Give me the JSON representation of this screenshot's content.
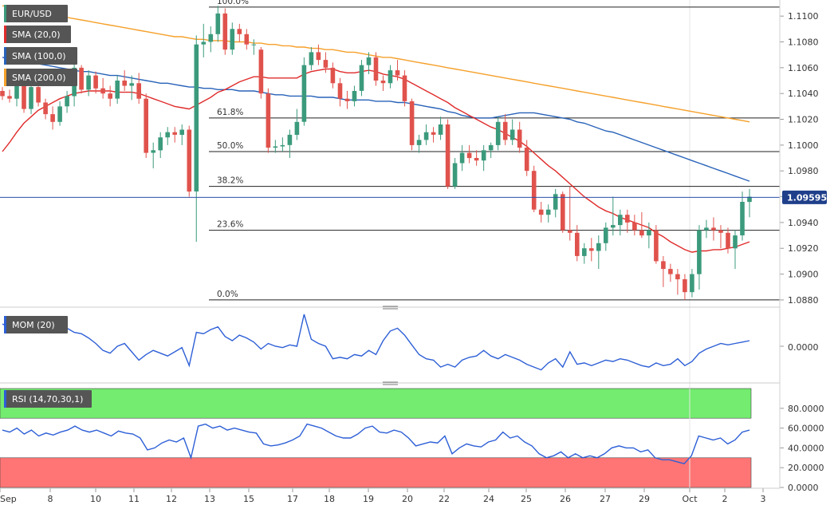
{
  "pair": "EUR/USD",
  "legend": {
    "sma20": {
      "label": "SMA (20,0)",
      "color": "#e02b2b"
    },
    "sma100": {
      "label": "SMA (100,0)",
      "color": "#2862b8"
    },
    "sma200": {
      "label": "SMA (200,0)",
      "color": "#f5a02a"
    }
  },
  "current_price": "1.09595",
  "colors": {
    "up": "#3b9a7c",
    "down": "#e0524c",
    "mom": "#2d5fd6",
    "rsi": "#2d5fd6",
    "overbought": "#73ec6f",
    "oversold": "#ff7575"
  },
  "momentum": {
    "label": "MOM (20)",
    "tick": "0.0000"
  },
  "rsi": {
    "label": "RSI (14,70,30,1)",
    "ticks": [
      "80.0000",
      "60.0000",
      "40.0000",
      "20.0000",
      "0.0000"
    ]
  },
  "chart_data": {
    "type": "candlestick",
    "ylim": [
      1.0875,
      1.111
    ],
    "y_ticks": [
      "1.1100",
      "1.1080",
      "1.1060",
      "1.1040",
      "1.1020",
      "1.1000",
      "1.0980",
      "1.0960",
      "1.0940",
      "1.0920",
      "1.0900",
      "1.0880"
    ],
    "x_labels": [
      "Sep",
      "8",
      "10",
      "11",
      "12",
      "13",
      "15",
      "17",
      "18",
      "19",
      "20",
      "22",
      "24",
      "25",
      "26",
      "27",
      "29",
      "Oct",
      "2",
      "3"
    ],
    "fibonacci": [
      {
        "label": "100.0%",
        "value": 1.1107
      },
      {
        "label": "61.8%",
        "value": 1.1021
      },
      {
        "label": "50.0%",
        "value": 1.0995
      },
      {
        "label": "38.2%",
        "value": 1.0968
      },
      {
        "label": "23.6%",
        "value": 1.0934
      },
      {
        "label": "0.0%",
        "value": 1.088
      }
    ],
    "candles": [
      [
        1.1042,
        1.1045,
        1.1035,
        1.1038
      ],
      [
        1.1038,
        1.1043,
        1.1033,
        1.1036
      ],
      [
        1.1036,
        1.1058,
        1.103,
        1.1052
      ],
      [
        1.1052,
        1.1055,
        1.1025,
        1.1028
      ],
      [
        1.1028,
        1.1048,
        1.1024,
        1.1045
      ],
      [
        1.1045,
        1.105,
        1.103,
        1.1033
      ],
      [
        1.1033,
        1.1036,
        1.102,
        1.1024
      ],
      [
        1.1024,
        1.103,
        1.1012,
        1.1018
      ],
      [
        1.1018,
        1.1034,
        1.1015,
        1.103
      ],
      [
        1.103,
        1.1042,
        1.1025,
        1.1038
      ],
      [
        1.1038,
        1.1066,
        1.103,
        1.106
      ],
      [
        1.106,
        1.1062,
        1.104,
        1.1043
      ],
      [
        1.1043,
        1.1058,
        1.1038,
        1.1054
      ],
      [
        1.1054,
        1.1057,
        1.104,
        1.1044
      ],
      [
        1.1044,
        1.1052,
        1.1036,
        1.104
      ],
      [
        1.104,
        1.1046,
        1.103,
        1.1036
      ],
      [
        1.1036,
        1.1054,
        1.1032,
        1.105
      ],
      [
        1.105,
        1.1058,
        1.1042,
        1.1046
      ],
      [
        1.1046,
        1.1054,
        1.1035,
        1.1048
      ],
      [
        1.1048,
        1.1056,
        1.1032,
        1.1036
      ],
      [
        1.1036,
        1.104,
        1.099,
        1.0994
      ],
      [
        1.0994,
        1.1002,
        1.0982,
        1.0996
      ],
      [
        1.0996,
        1.101,
        1.099,
        1.1006
      ],
      [
        1.1006,
        1.1014,
        1.1,
        1.101
      ],
      [
        1.101,
        1.1014,
        1.1002,
        1.1008
      ],
      [
        1.1008,
        1.1016,
        1.1,
        1.1012
      ],
      [
        1.1012,
        1.1015,
        1.096,
        1.0964
      ],
      [
        1.0964,
        1.1085,
        1.0925,
        1.1078
      ],
      [
        1.1078,
        1.1094,
        1.1068,
        1.108
      ],
      [
        1.108,
        1.1092,
        1.1072,
        1.1086
      ],
      [
        1.1086,
        1.1108,
        1.108,
        1.1102
      ],
      [
        1.1102,
        1.1106,
        1.107,
        1.1074
      ],
      [
        1.1074,
        1.1095,
        1.107,
        1.109
      ],
      [
        1.109,
        1.1094,
        1.108,
        1.1086
      ],
      [
        1.1086,
        1.109,
        1.1074,
        1.1078
      ],
      [
        1.1078,
        1.1082,
        1.107,
        1.1078
      ],
      [
        1.1074,
        1.1076,
        1.1036,
        1.104
      ],
      [
        1.104,
        1.1044,
        1.0994,
        1.0998
      ],
      [
        1.0998,
        1.1004,
        1.0994,
        1.0999
      ],
      [
        1.0999,
        1.1006,
        1.0995,
        1.1
      ],
      [
        1.1,
        1.1012,
        1.099,
        1.1008
      ],
      [
        1.1008,
        1.1028,
        1.1004,
        1.1018
      ],
      [
        1.1018,
        1.1068,
        1.1015,
        1.1062
      ],
      [
        1.1062,
        1.1076,
        1.1058,
        1.1072
      ],
      [
        1.1072,
        1.1078,
        1.1062,
        1.1066
      ],
      [
        1.1066,
        1.1072,
        1.1056,
        1.106
      ],
      [
        1.106,
        1.1064,
        1.1044,
        1.1048
      ],
      [
        1.1048,
        1.1052,
        1.103,
        1.1036
      ],
      [
        1.1036,
        1.1042,
        1.1028,
        1.1034
      ],
      [
        1.1034,
        1.1046,
        1.103,
        1.1042
      ],
      [
        1.1042,
        1.1066,
        1.1038,
        1.1062
      ],
      [
        1.1062,
        1.1072,
        1.1055,
        1.1068
      ],
      [
        1.1068,
        1.1072,
        1.1046,
        1.105
      ],
      [
        1.105,
        1.1054,
        1.1042,
        1.1048
      ],
      [
        1.1048,
        1.1062,
        1.1044,
        1.1058
      ],
      [
        1.1058,
        1.1066,
        1.105,
        1.1054
      ],
      [
        1.1054,
        1.1058,
        1.103,
        1.1034
      ],
      [
        1.1034,
        1.1036,
        1.0996,
        1.1
      ],
      [
        1.1,
        1.1008,
        1.0994,
        1.1004
      ],
      [
        1.1004,
        1.1016,
        1.1,
        1.101
      ],
      [
        1.101,
        1.1014,
        1.1002,
        1.1008
      ],
      [
        1.1008,
        1.1022,
        1.1004,
        1.1016
      ],
      [
        1.1016,
        1.102,
        1.0966,
        1.0968
      ],
      [
        1.0968,
        1.099,
        1.0966,
        1.0986
      ],
      [
        1.0986,
        1.1,
        1.098,
        1.0994
      ],
      [
        1.0994,
        1.1,
        1.0986,
        1.099
      ],
      [
        1.099,
        1.0996,
        1.0984,
        1.0988
      ],
      [
        1.0988,
        1.1,
        1.098,
        1.0996
      ],
      [
        1.0996,
        1.1002,
        1.099,
        1.1
      ],
      [
        1.1,
        1.1022,
        1.0996,
        1.1018
      ],
      [
        1.1018,
        1.1024,
        1.1,
        1.1004
      ],
      [
        1.1004,
        1.102,
        1.1,
        1.1012
      ],
      [
        1.1012,
        1.1018,
        1.0994,
        1.0998
      ],
      [
        1.0998,
        1.1004,
        1.0976,
        1.098
      ],
      [
        1.098,
        1.0984,
        1.0948,
        1.095
      ],
      [
        1.095,
        1.0956,
        1.094,
        1.0946
      ],
      [
        1.0946,
        1.0954,
        1.094,
        1.095
      ],
      [
        1.095,
        1.0966,
        1.0944,
        1.0962
      ],
      [
        1.0962,
        1.0964,
        1.0932,
        1.0934
      ],
      [
        1.0934,
        1.0968,
        1.0926,
        1.0932
      ],
      [
        1.0932,
        1.0938,
        1.091,
        1.0914
      ],
      [
        1.0914,
        1.0924,
        1.0908,
        1.092
      ],
      [
        1.092,
        1.0928,
        1.091,
        1.0918
      ],
      [
        1.0918,
        1.093,
        1.0904,
        1.0924
      ],
      [
        1.0924,
        1.094,
        1.0918,
        1.0936
      ],
      [
        1.0936,
        1.096,
        1.093,
        1.0938
      ],
      [
        1.0938,
        1.095,
        1.093,
        1.0946
      ],
      [
        1.0946,
        1.095,
        1.0932,
        1.094
      ],
      [
        1.094,
        1.0946,
        1.093,
        1.0934
      ],
      [
        1.0934,
        1.0948,
        1.0928,
        1.093
      ],
      [
        1.093,
        1.094,
        1.092,
        1.0934
      ],
      [
        1.0934,
        1.0938,
        1.0908,
        1.091
      ],
      [
        1.091,
        1.0914,
        1.089,
        1.0904
      ],
      [
        1.0904,
        1.0908,
        1.0894,
        1.09
      ],
      [
        1.09,
        1.0904,
        1.0884,
        1.0896
      ],
      [
        1.0896,
        1.09,
        1.088,
        1.0886
      ],
      [
        1.0886,
        1.0904,
        1.0882,
        1.09
      ],
      [
        1.09,
        1.0938,
        1.0888,
        1.0934
      ],
      [
        1.0934,
        1.0942,
        1.0928,
        1.0936
      ],
      [
        1.0936,
        1.0944,
        1.0926,
        1.0934
      ],
      [
        1.0934,
        1.0938,
        1.092,
        1.0932
      ],
      [
        1.0932,
        1.0936,
        1.0916,
        1.092
      ],
      [
        1.092,
        1.0934,
        1.0904,
        1.093
      ],
      [
        1.093,
        1.0964,
        1.0926,
        1.0956
      ],
      [
        1.0956,
        1.0966,
        1.0944,
        1.096
      ]
    ],
    "sma20": [
      1.0995,
      1.1002,
      1.101,
      1.1017,
      1.1022,
      1.1027,
      1.103,
      1.1033,
      1.1036,
      1.1038,
      1.104,
      1.1041,
      1.1042,
      1.1042,
      1.1042,
      1.1042,
      1.1041,
      1.1041,
      1.1041,
      1.104,
      1.1038,
      1.1036,
      1.1034,
      1.1032,
      1.103,
      1.1029,
      1.1028,
      1.1031,
      1.1034,
      1.1037,
      1.1041,
      1.1043,
      1.1046,
      1.1049,
      1.1051,
      1.1053,
      1.1053,
      1.1052,
      1.1052,
      1.1052,
      1.1052,
      1.1052,
      1.1055,
      1.1057,
      1.1058,
      1.1059,
      1.1059,
      1.1057,
      1.1056,
      1.1056,
      1.1057,
      1.1058,
      1.1057,
      1.1055,
      1.1054,
      1.1053,
      1.1051,
      1.1048,
      1.1045,
      1.1042,
      1.1039,
      1.1036,
      1.1033,
      1.1029,
      1.1026,
      1.1023,
      1.102,
      1.1017,
      1.1014,
      1.1012,
      1.1009,
      1.1006,
      1.1003,
      1.0999,
      1.0994,
      1.0989,
      1.0984,
      1.098,
      1.0975,
      1.097,
      1.0965,
      1.096,
      1.0956,
      1.0952,
      1.0949,
      1.0947,
      1.0944,
      1.0942,
      1.094,
      1.0938,
      1.0936,
      1.0932,
      1.0929,
      1.0925,
      1.0922,
      1.0919,
      1.0917,
      1.0918,
      1.0918,
      1.0919,
      1.0919,
      1.092,
      1.0921,
      1.0923,
      1.0925
    ],
    "sma100": [
      1.1068,
      1.1067,
      1.1066,
      1.1065,
      1.1064,
      1.1063,
      1.1062,
      1.1061,
      1.106,
      1.1059,
      1.1058,
      1.1057,
      1.1057,
      1.1056,
      1.1055,
      1.1054,
      1.1054,
      1.1053,
      1.1052,
      1.1051,
      1.105,
      1.1049,
      1.1048,
      1.1048,
      1.1047,
      1.1046,
      1.1045,
      1.1045,
      1.1044,
      1.1044,
      1.1043,
      1.1043,
      1.1043,
      1.1042,
      1.1042,
      1.1042,
      1.1041,
      1.104,
      1.1039,
      1.1039,
      1.1038,
      1.1038,
      1.1038,
      1.1038,
      1.1037,
      1.1037,
      1.1037,
      1.1036,
      1.1035,
      1.1035,
      1.1035,
      1.1035,
      1.1034,
      1.1034,
      1.1034,
      1.1033,
      1.1033,
      1.1032,
      1.1031,
      1.103,
      1.1029,
      1.1028,
      1.1026,
      1.1025,
      1.1023,
      1.1022,
      1.1021,
      1.1021,
      1.1021,
      1.1022,
      1.1023,
      1.1024,
      1.1025,
      1.1025,
      1.1025,
      1.1024,
      1.1023,
      1.1022,
      1.1021,
      1.102,
      1.1018,
      1.1017,
      1.1015,
      1.1013,
      1.1011,
      1.101,
      1.1008,
      1.1006,
      1.1004,
      1.1002,
      1.1,
      1.0998,
      1.0996,
      1.0994,
      1.0992,
      1.099,
      1.0988,
      1.0986,
      1.0984,
      1.0982,
      1.098,
      1.0978,
      1.0976,
      1.0974,
      1.0972
    ],
    "sma200": [
      1.1108,
      1.1107,
      1.1106,
      1.1105,
      1.1104,
      1.1103,
      1.1102,
      1.1101,
      1.11,
      1.1099,
      1.1098,
      1.1097,
      1.1096,
      1.1095,
      1.1094,
      1.1093,
      1.1092,
      1.1091,
      1.109,
      1.1089,
      1.1088,
      1.1087,
      1.1086,
      1.1085,
      1.1084,
      1.1084,
      1.1083,
      1.1082,
      1.1082,
      1.1081,
      1.1081,
      1.1081,
      1.108,
      1.108,
      1.108,
      1.1079,
      1.1079,
      1.1078,
      1.1078,
      1.1077,
      1.1077,
      1.1076,
      1.1076,
      1.1075,
      1.1075,
      1.1074,
      1.1074,
      1.1073,
      1.1072,
      1.1072,
      1.1071,
      1.107,
      1.1069,
      1.1068,
      1.1068,
      1.1067,
      1.1066,
      1.1065,
      1.1064,
      1.1063,
      1.1062,
      1.1061,
      1.106,
      1.1059,
      1.1058,
      1.1057,
      1.1056,
      1.1055,
      1.1054,
      1.1053,
      1.1052,
      1.1051,
      1.105,
      1.1049,
      1.1048,
      1.1047,
      1.1046,
      1.1045,
      1.1044,
      1.1043,
      1.1042,
      1.1041,
      1.104,
      1.1039,
      1.1038,
      1.1037,
      1.1036,
      1.1035,
      1.1034,
      1.1033,
      1.1032,
      1.1031,
      1.103,
      1.1029,
      1.1028,
      1.1027,
      1.1026,
      1.1025,
      1.1024,
      1.1023,
      1.1022,
      1.1021,
      1.102,
      1.1019,
      1.1018
    ],
    "mom": [
      0.0032,
      0.0028,
      0.003,
      0.0034,
      0.0031,
      0.0036,
      0.004,
      0.0034,
      0.003,
      0.0026,
      0.002,
      0.0018,
      0.0012,
      0.0004,
      -0.0006,
      -0.001,
      0.0,
      0.0004,
      -0.0008,
      -0.002,
      -0.0012,
      -0.0006,
      -0.001,
      -0.0014,
      -0.0008,
      -0.0002,
      -0.0028,
      0.002,
      0.0018,
      0.0024,
      0.0028,
      0.0014,
      0.0008,
      0.0016,
      0.0012,
      0.0006,
      -0.0004,
      0.0004,
      0.0,
      -0.0002,
      0.0002,
      0.0,
      0.0046,
      0.001,
      0.0004,
      0.0,
      -0.0018,
      -0.0016,
      -0.0018,
      -0.0012,
      -0.0014,
      -0.0006,
      -0.0012,
      0.0008,
      0.0022,
      0.0026,
      0.0016,
      0.0002,
      -0.0012,
      -0.0018,
      -0.002,
      -0.003,
      -0.0026,
      -0.003,
      -0.002,
      -0.0016,
      -0.0014,
      -0.0006,
      -0.0014,
      -0.0018,
      -0.0012,
      -0.0016,
      -0.002,
      -0.0026,
      -0.003,
      -0.0034,
      -0.0024,
      -0.0018,
      -0.003,
      -0.0008,
      -0.0026,
      -0.0024,
      -0.0028,
      -0.0024,
      -0.002,
      -0.0022,
      -0.0018,
      -0.002,
      -0.0024,
      -0.0028,
      -0.003,
      -0.0024,
      -0.0028,
      -0.0026,
      -0.0018,
      -0.0028,
      -0.0022,
      -0.001,
      -0.0004,
      0.0,
      0.0004,
      0.0002,
      0.0004,
      0.0006,
      0.0008
    ],
    "rsi": [
      58,
      56,
      60,
      54,
      58,
      52,
      55,
      53,
      56,
      58,
      62,
      58,
      56,
      58,
      55,
      52,
      57,
      55,
      54,
      50,
      38,
      40,
      45,
      48,
      46,
      50,
      30,
      62,
      64,
      60,
      62,
      58,
      60,
      58,
      56,
      55,
      44,
      42,
      43,
      45,
      48,
      52,
      64,
      62,
      60,
      56,
      52,
      50,
      50,
      54,
      60,
      62,
      56,
      55,
      58,
      56,
      50,
      42,
      44,
      46,
      45,
      52,
      34,
      40,
      44,
      42,
      41,
      46,
      48,
      56,
      50,
      52,
      46,
      42,
      34,
      30,
      32,
      36,
      30,
      34,
      30,
      32,
      30,
      34,
      40,
      42,
      40,
      40,
      36,
      38,
      30,
      28,
      28,
      26,
      24,
      32,
      52,
      50,
      48,
      50,
      44,
      48,
      56,
      58
    ]
  }
}
